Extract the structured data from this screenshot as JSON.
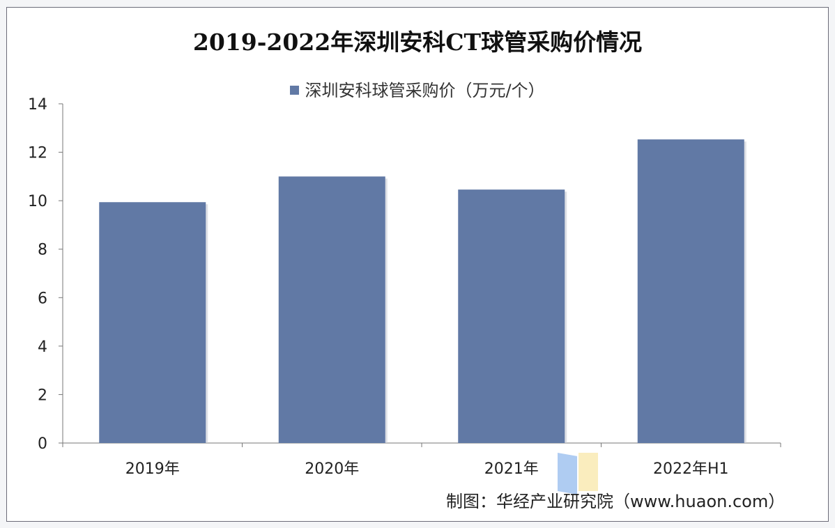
{
  "chart_data": {
    "type": "bar",
    "title": "2019-2022年深圳安科CT球管采购价情况",
    "categories": [
      "2019年",
      "2020年",
      "2021年",
      "2022年H1"
    ],
    "series": [
      {
        "name": "深圳安科球管采购价（万元/个）",
        "values": [
          9.94,
          11.0,
          10.46,
          12.53
        ],
        "color": "#6179a5"
      }
    ],
    "ylim": [
      0,
      14
    ],
    "yticks": [
      "0",
      "2",
      "4",
      "6",
      "8",
      "10",
      "12",
      "14"
    ],
    "grid": false,
    "legend": "top"
  },
  "source": "制图：华经产业研究院（www.huaon.com）",
  "watermark": "华经产业研究院 www.huaon.com"
}
